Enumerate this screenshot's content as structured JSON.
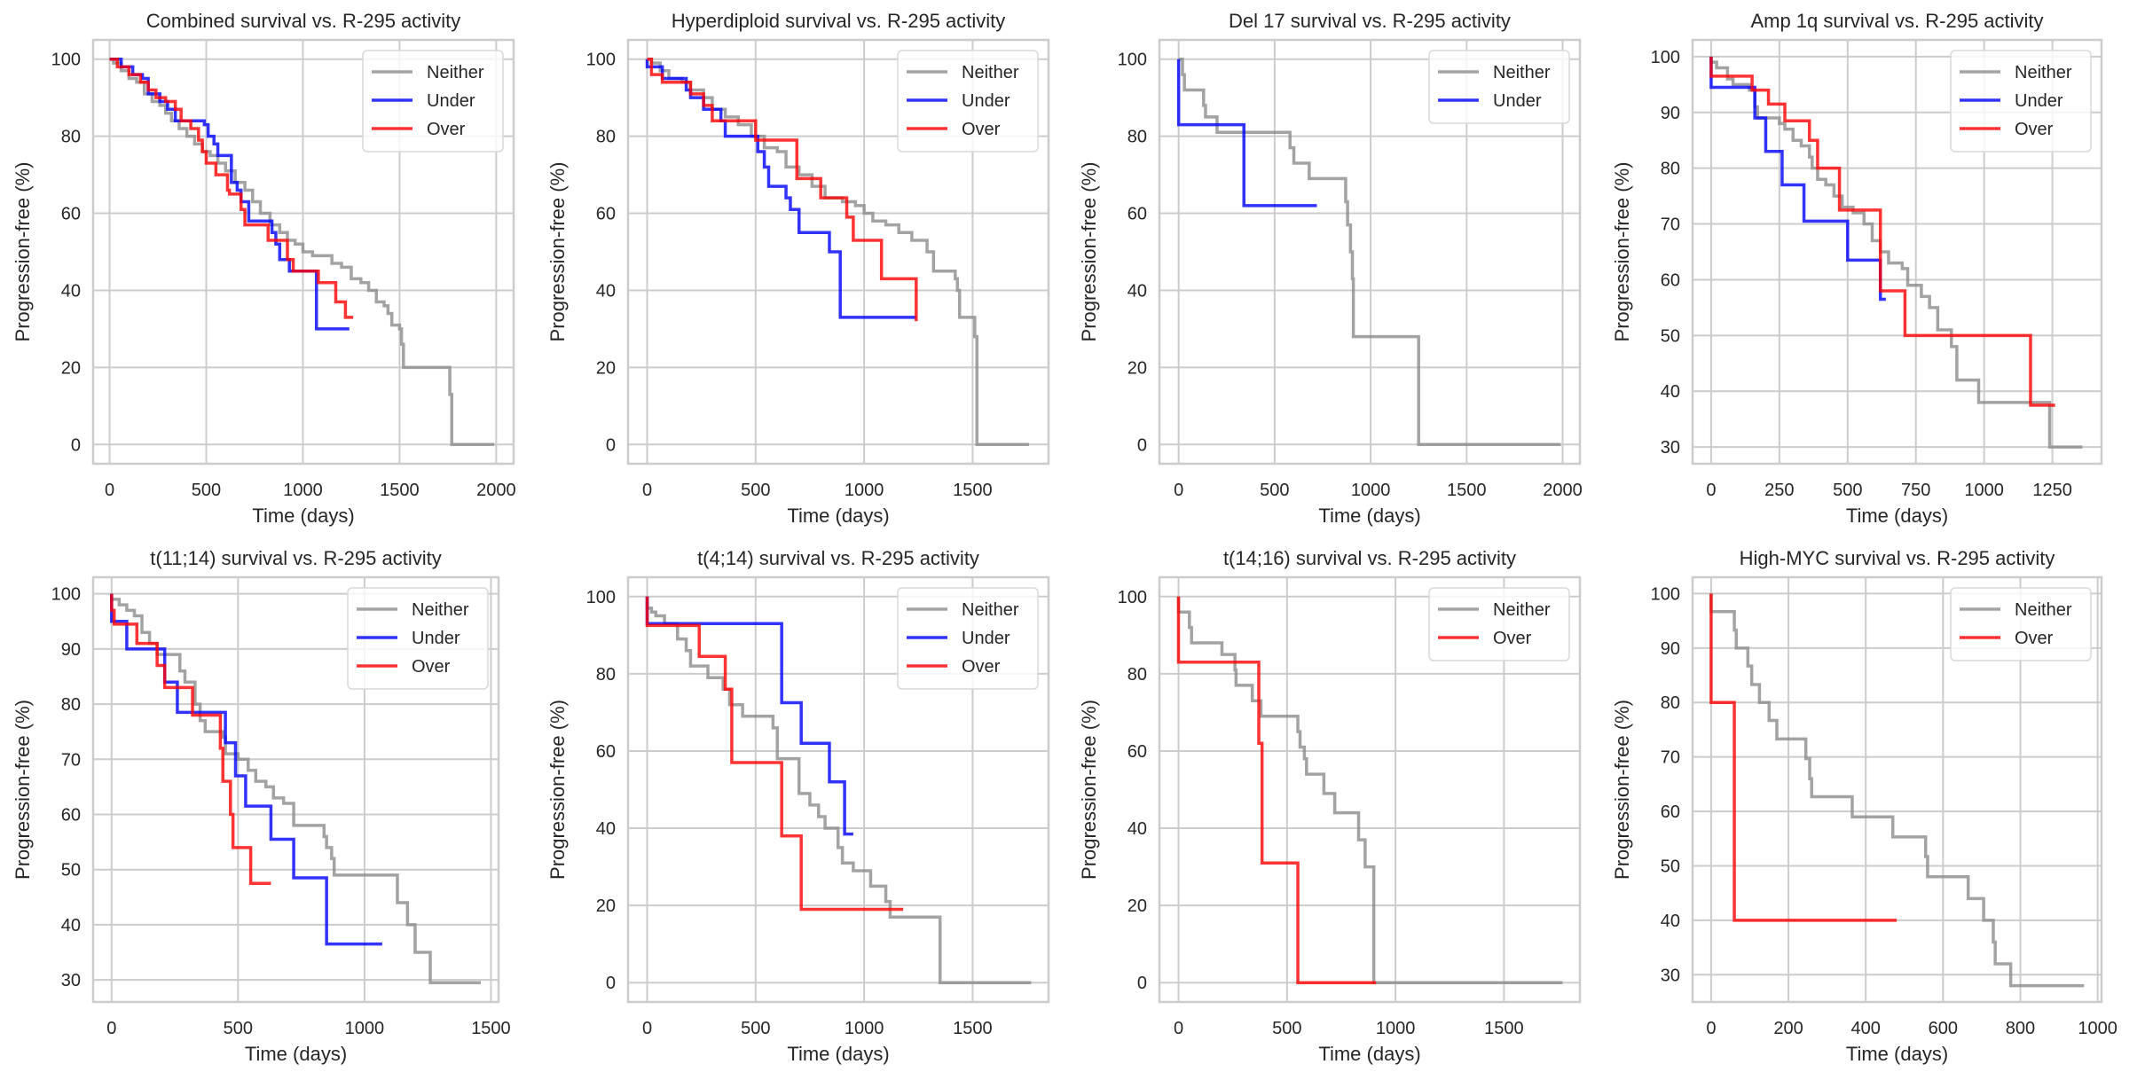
{
  "figure": {
    "colors": {
      "Neither": "#8c8c8c",
      "Under": "#0000ff",
      "Over": "#ff0000",
      "grid": "#cccccc",
      "text": "#262626"
    }
  },
  "chart_data": [
    {
      "type": "line",
      "title": "Combined survival vs. R-295 activity",
      "xlabel": "Time (days)",
      "ylabel": "Progression-free (%)",
      "xlim": [
        -85,
        2090
      ],
      "ylim": [
        -5,
        105
      ],
      "xticks": [
        0,
        500,
        1000,
        1500,
        2000
      ],
      "yticks": [
        0,
        20,
        40,
        60,
        80,
        100
      ],
      "grid": true,
      "legend": "top-right",
      "series": [
        {
          "name": "Neither",
          "x": [
            0,
            20,
            60,
            100,
            140,
            180,
            220,
            260,
            290,
            320,
            360,
            400,
            440,
            480,
            520,
            560,
            600,
            650,
            700,
            740,
            780,
            830,
            880,
            920,
            960,
            1000,
            1050,
            1100,
            1150,
            1200,
            1250,
            1300,
            1340,
            1380,
            1420,
            1440,
            1460,
            1500,
            1510,
            1520,
            1760,
            1770,
            1990
          ],
          "y": [
            100,
            99,
            97,
            95,
            94,
            91,
            89,
            88,
            86,
            84,
            82,
            80,
            78,
            76,
            75,
            73,
            71,
            68,
            66,
            63,
            60,
            57,
            55,
            53,
            52,
            50,
            49,
            49,
            47,
            46,
            43,
            42,
            40,
            37,
            36,
            34,
            31,
            30,
            26,
            20,
            13,
            0,
            0
          ]
        },
        {
          "name": "Under",
          "x": [
            0,
            60,
            120,
            170,
            200,
            260,
            300,
            340,
            490,
            510,
            540,
            560,
            600,
            630,
            660,
            680,
            720,
            840,
            860,
            880,
            930,
            1060,
            1070,
            1240
          ],
          "y": [
            100,
            98,
            96,
            95,
            91,
            89,
            87,
            84,
            83,
            80,
            78,
            75,
            75,
            68,
            66,
            63,
            58,
            55,
            52,
            48,
            45,
            45,
            30,
            30
          ]
        },
        {
          "name": "Over",
          "x": [
            0,
            40,
            100,
            160,
            200,
            240,
            290,
            340,
            370,
            420,
            460,
            480,
            500,
            550,
            610,
            620,
            680,
            700,
            760,
            820,
            920,
            950,
            1080,
            1170,
            1220,
            1240,
            1260
          ],
          "y": [
            100,
            98,
            96,
            94,
            92,
            90,
            89,
            87,
            84,
            82,
            79,
            76,
            73,
            70,
            66,
            65,
            61,
            57,
            57,
            53,
            48,
            45,
            42,
            37,
            33,
            33,
            33
          ]
        }
      ]
    },
    {
      "type": "line",
      "title": "Hyperdiploid survival vs. R-295 activity",
      "xlabel": "Time (days)",
      "ylabel": "Progression-free (%)",
      "xlim": [
        -88,
        1850
      ],
      "ylim": [
        -5,
        105
      ],
      "xticks": [
        0,
        500,
        1000,
        1500
      ],
      "yticks": [
        0,
        20,
        40,
        60,
        80,
        100
      ],
      "grid": true,
      "legend": "top-right",
      "series": [
        {
          "name": "Neither",
          "x": [
            0,
            20,
            60,
            100,
            160,
            200,
            260,
            300,
            360,
            420,
            480,
            540,
            600,
            640,
            700,
            760,
            820,
            900,
            960,
            1000,
            1040,
            1100,
            1160,
            1220,
            1290,
            1320,
            1420,
            1430,
            1440,
            1510,
            1520,
            1530,
            1760
          ],
          "y": [
            100,
            99,
            97,
            95,
            94,
            92,
            90,
            87,
            85,
            83,
            80,
            77,
            76,
            72,
            70,
            67,
            64,
            63,
            62,
            60,
            58,
            57,
            55,
            53,
            50,
            45,
            43,
            40,
            33,
            28,
            0,
            0,
            0
          ]
        },
        {
          "name": "Under",
          "x": [
            0,
            70,
            180,
            200,
            260,
            340,
            360,
            500,
            510,
            540,
            560,
            640,
            660,
            700,
            840,
            890,
            1240
          ],
          "y": [
            98,
            95,
            92,
            90,
            87,
            84,
            80,
            80,
            76,
            72,
            67,
            64,
            61,
            55,
            50,
            33,
            33
          ]
        },
        {
          "name": "Over",
          "x": [
            0,
            20,
            70,
            200,
            260,
            300,
            500,
            690,
            800,
            920,
            950,
            1080,
            1240
          ],
          "y": [
            100,
            96,
            94,
            91,
            88,
            84,
            79,
            69,
            64,
            59,
            53,
            43,
            32
          ]
        }
      ]
    },
    {
      "type": "line",
      "title": "Del 17 survival vs. R-295 activity",
      "xlabel": "Time (days)",
      "ylabel": "Progression-free (%)",
      "xlim": [
        -100,
        2090
      ],
      "ylim": [
        -5,
        105
      ],
      "xticks": [
        0,
        500,
        1000,
        1500,
        2000
      ],
      "yticks": [
        0,
        20,
        40,
        60,
        80,
        100
      ],
      "grid": true,
      "legend": "top-right",
      "series": [
        {
          "name": "Neither",
          "x": [
            0,
            20,
            30,
            130,
            140,
            200,
            580,
            600,
            680,
            870,
            880,
            895,
            905,
            910,
            1250,
            1990
          ],
          "y": [
            100,
            96,
            92,
            88,
            85,
            81,
            77,
            73,
            69,
            63,
            57,
            50,
            43,
            28,
            0,
            0
          ]
        },
        {
          "name": "Under",
          "x": [
            0,
            340,
            720
          ],
          "y": [
            83,
            62,
            62
          ]
        }
      ]
    },
    {
      "type": "line",
      "title": "Amp 1q survival vs. R-295 activity",
      "xlabel": "Time (days)",
      "ylabel": "Progression-free (%)",
      "xlim": [
        -68,
        1430
      ],
      "ylim": [
        27,
        103
      ],
      "xticks": [
        0,
        250,
        500,
        750,
        1000,
        1250
      ],
      "yticks": [
        30,
        40,
        50,
        60,
        70,
        80,
        90,
        100
      ],
      "grid": true,
      "legend": "top-right",
      "series": [
        {
          "name": "Neither",
          "x": [
            0,
            20,
            60,
            80,
            140,
            160,
            170,
            250,
            270,
            300,
            330,
            360,
            370,
            390,
            420,
            450,
            480,
            520,
            560,
            590,
            620,
            650,
            700,
            720,
            770,
            800,
            830,
            880,
            900,
            980,
            1240,
            1360
          ],
          "y": [
            99,
            98,
            96,
            95,
            94,
            91,
            89,
            88,
            87,
            85,
            84,
            82,
            80,
            78,
            77,
            75,
            73,
            72,
            70,
            67,
            65,
            63,
            62,
            59,
            57,
            55,
            51,
            48,
            42,
            38,
            30,
            30
          ]
        },
        {
          "name": "Under",
          "x": [
            0,
            160,
            200,
            260,
            340,
            500,
            620,
            640
          ],
          "y": [
            94.5,
            89,
            83,
            77,
            70.5,
            63.5,
            56.5,
            56.5
          ]
        },
        {
          "name": "Over",
          "x": [
            0,
            150,
            210,
            270,
            360,
            390,
            470,
            620,
            710,
            1170,
            1260
          ],
          "y": [
            96.5,
            94,
            91.5,
            88.5,
            85,
            80,
            72.5,
            58,
            50,
            37.5,
            37.5
          ]
        }
      ]
    },
    {
      "type": "line",
      "title": "t(11;14) survival vs. R-295 activity",
      "xlabel": "Time (days)",
      "ylabel": "Progression-free (%)",
      "xlim": [
        -73,
        1530
      ],
      "ylim": [
        26,
        103
      ],
      "xticks": [
        0,
        500,
        1000,
        1500
      ],
      "yticks": [
        30,
        40,
        50,
        60,
        70,
        80,
        90,
        100
      ],
      "grid": true,
      "legend": "top-right",
      "series": [
        {
          "name": "Neither",
          "x": [
            0,
            30,
            60,
            90,
            120,
            150,
            180,
            250,
            270,
            290,
            330,
            350,
            370,
            440,
            450,
            500,
            540,
            570,
            610,
            640,
            680,
            720,
            840,
            850,
            870,
            880,
            1130,
            1170,
            1200,
            1260,
            1460
          ],
          "y": [
            99,
            98,
            97,
            96,
            93,
            91,
            89,
            89,
            86,
            84,
            80,
            77,
            75,
            74,
            71,
            70,
            68,
            66,
            65,
            63,
            62,
            58,
            56,
            54,
            52,
            49,
            44,
            40,
            35,
            29.5,
            29.5
          ]
        },
        {
          "name": "Under",
          "x": [
            0,
            60,
            210,
            260,
            450,
            490,
            530,
            630,
            720,
            850,
            1070
          ],
          "y": [
            95,
            90,
            84,
            78.5,
            73,
            67,
            61.5,
            55.5,
            48.5,
            36.5,
            36.5
          ]
        },
        {
          "name": "Over",
          "x": [
            0,
            10,
            100,
            180,
            210,
            320,
            430,
            440,
            470,
            480,
            550,
            630
          ],
          "y": [
            97,
            94.5,
            91,
            87,
            83,
            78,
            72,
            66,
            60,
            54,
            47.5,
            47.5
          ]
        }
      ]
    },
    {
      "type": "line",
      "title": "t(4;14) survival vs. R-295 activity",
      "xlabel": "Time (days)",
      "ylabel": "Progression-free (%)",
      "xlim": [
        -88,
        1850
      ],
      "ylim": [
        -5,
        105
      ],
      "xticks": [
        0,
        500,
        1000,
        1500
      ],
      "yticks": [
        0,
        20,
        40,
        60,
        80,
        100
      ],
      "grid": true,
      "legend": "top-right",
      "series": [
        {
          "name": "Neither",
          "x": [
            0,
            20,
            40,
            80,
            140,
            180,
            200,
            280,
            350,
            380,
            440,
            580,
            600,
            700,
            750,
            790,
            820,
            880,
            900,
            950,
            1030,
            1100,
            1120,
            1350,
            1770
          ],
          "y": [
            97,
            96,
            95,
            93,
            89,
            86,
            82,
            79,
            76,
            72,
            69,
            66,
            58,
            49,
            46,
            43,
            40,
            35,
            31,
            29,
            25,
            21,
            17,
            0,
            0
          ]
        },
        {
          "name": "Under",
          "x": [
            0,
            620,
            710,
            840,
            910,
            950
          ],
          "y": [
            93,
            72.5,
            62,
            52,
            38.5,
            38.5
          ]
        },
        {
          "name": "Over",
          "x": [
            0,
            240,
            360,
            390,
            620,
            710,
            1180
          ],
          "y": [
            92.5,
            84.5,
            76,
            57,
            38,
            19,
            19
          ]
        }
      ]
    },
    {
      "type": "line",
      "title": "t(14;16) survival vs. R-295 activity",
      "xlabel": "Time (days)",
      "ylabel": "Progression-free (%)",
      "xlim": [
        -88,
        1850
      ],
      "ylim": [
        -5,
        105
      ],
      "xticks": [
        0,
        500,
        1000,
        1500
      ],
      "yticks": [
        0,
        20,
        40,
        60,
        80,
        100
      ],
      "grid": true,
      "legend": "top-right",
      "series": [
        {
          "name": "Neither",
          "x": [
            0,
            50,
            60,
            200,
            260,
            265,
            340,
            380,
            550,
            560,
            580,
            590,
            670,
            720,
            830,
            860,
            900,
            1770
          ],
          "y": [
            96,
            92,
            88,
            85,
            81,
            77,
            73,
            69,
            65,
            61,
            58,
            54,
            49,
            44,
            37,
            30,
            0,
            0
          ]
        },
        {
          "name": "Over",
          "x": [
            0,
            370,
            385,
            550,
            910
          ],
          "y": [
            83,
            62,
            31,
            0,
            0
          ]
        }
      ]
    },
    {
      "type": "line",
      "title": "High-MYC survival vs. R-295 activity",
      "xlabel": "Time (days)",
      "ylabel": "Progression-free (%)",
      "xlim": [
        -48,
        1010
      ],
      "ylim": [
        25,
        103
      ],
      "xticks": [
        0,
        200,
        400,
        600,
        800,
        1000
      ],
      "yticks": [
        30,
        40,
        50,
        60,
        70,
        80,
        90,
        100
      ],
      "grid": true,
      "legend": "top-right",
      "series": [
        {
          "name": "Neither",
          "x": [
            0,
            60,
            65,
            95,
            105,
            125,
            150,
            170,
            245,
            255,
            260,
            365,
            470,
            555,
            560,
            665,
            705,
            730,
            735,
            775,
            965
          ],
          "y": [
            96.7,
            93.3,
            90,
            86.7,
            83.3,
            80,
            76.7,
            73.3,
            69.7,
            66,
            62.7,
            59,
            55.3,
            51.7,
            48,
            44,
            40,
            36,
            32,
            28,
            28
          ]
        },
        {
          "name": "Over",
          "x": [
            0,
            60,
            480
          ],
          "y": [
            80,
            40,
            40
          ]
        }
      ]
    }
  ]
}
